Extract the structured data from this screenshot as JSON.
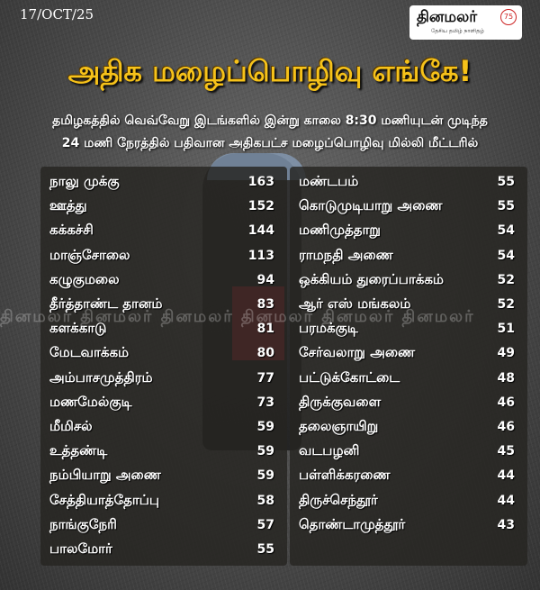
{
  "date": "17/OCT/25",
  "logo": {
    "name": "தினமலர்",
    "tagline": "தேசிய தமிழ் நாளிதழ்",
    "badge": "75"
  },
  "title": "அதிக மழைப்பொழிவு எங்கே!",
  "subtitle_line1": "தமிழகத்தில் வெவ்வேறு இடங்களில் இன்று காலை 8:30 மணியுடன் முடிந்த",
  "subtitle_line2": "24 மணி நேரத்தில் பதிவான அதிகபட்ச மழைப்பொழிவு மில்லி மீட்டரில்",
  "colors": {
    "title": "#f6c21a",
    "text": "#ffffff",
    "panel": "#262421"
  },
  "left_list": [
    {
      "place": "நாலு முக்கு",
      "mm": "163"
    },
    {
      "place": "ஊத்து",
      "mm": "152"
    },
    {
      "place": "கக்கச்சி",
      "mm": "144"
    },
    {
      "place": "மாஞ்சோலை",
      "mm": "113"
    },
    {
      "place": "கழுகுமலை",
      "mm": "94"
    },
    {
      "place": "தீர்த்தாண்ட தானம்",
      "mm": "83"
    },
    {
      "place": "களக்காடு",
      "mm": "81"
    },
    {
      "place": "மேடவாக்கம்",
      "mm": "80"
    },
    {
      "place": "அம்பாசமுத்திரம்",
      "mm": "77"
    },
    {
      "place": "மணமேல்குடி",
      "mm": "73"
    },
    {
      "place": "மீமிசல்",
      "mm": "59"
    },
    {
      "place": "உத்தண்டி",
      "mm": "59"
    },
    {
      "place": "நம்பியாறு அணை",
      "mm": "59"
    },
    {
      "place": "சேத்தியாத்தோப்பு",
      "mm": "58"
    },
    {
      "place": "நாங்குநேரி",
      "mm": "57"
    },
    {
      "place": "பாலமோர்",
      "mm": "55"
    }
  ],
  "right_list": [
    {
      "place": "மண்டபம்",
      "mm": "55"
    },
    {
      "place": "கொடுமுடியாறு அணை",
      "mm": "55"
    },
    {
      "place": "மணிமுத்தாறு",
      "mm": "54"
    },
    {
      "place": "ராமநதி அணை",
      "mm": "54"
    },
    {
      "place": "ஒக்கியம் துரைப்பாக்கம்",
      "mm": "52"
    },
    {
      "place": "ஆர் எஸ் மங்கலம்",
      "mm": "52"
    },
    {
      "place": "பரமக்குடி",
      "mm": "51"
    },
    {
      "place": "சேர்வலாறு அணை",
      "mm": "49"
    },
    {
      "place": "பட்டுக்கோட்டை",
      "mm": "48"
    },
    {
      "place": "திருக்குவளை",
      "mm": "46"
    },
    {
      "place": "தலைஞாயிறு",
      "mm": "46"
    },
    {
      "place": "வடபழனி",
      "mm": "45"
    },
    {
      "place": "பள்ளிக்கரணை",
      "mm": "44"
    },
    {
      "place": "திருச்செந்தூர்",
      "mm": "44"
    },
    {
      "place": "தொண்டாமுத்தூர்",
      "mm": "43"
    }
  ],
  "watermark": "தினமலர்   தினமலர்   தினமலர்   தினமலர்   தினமலர்   தினமலர்"
}
